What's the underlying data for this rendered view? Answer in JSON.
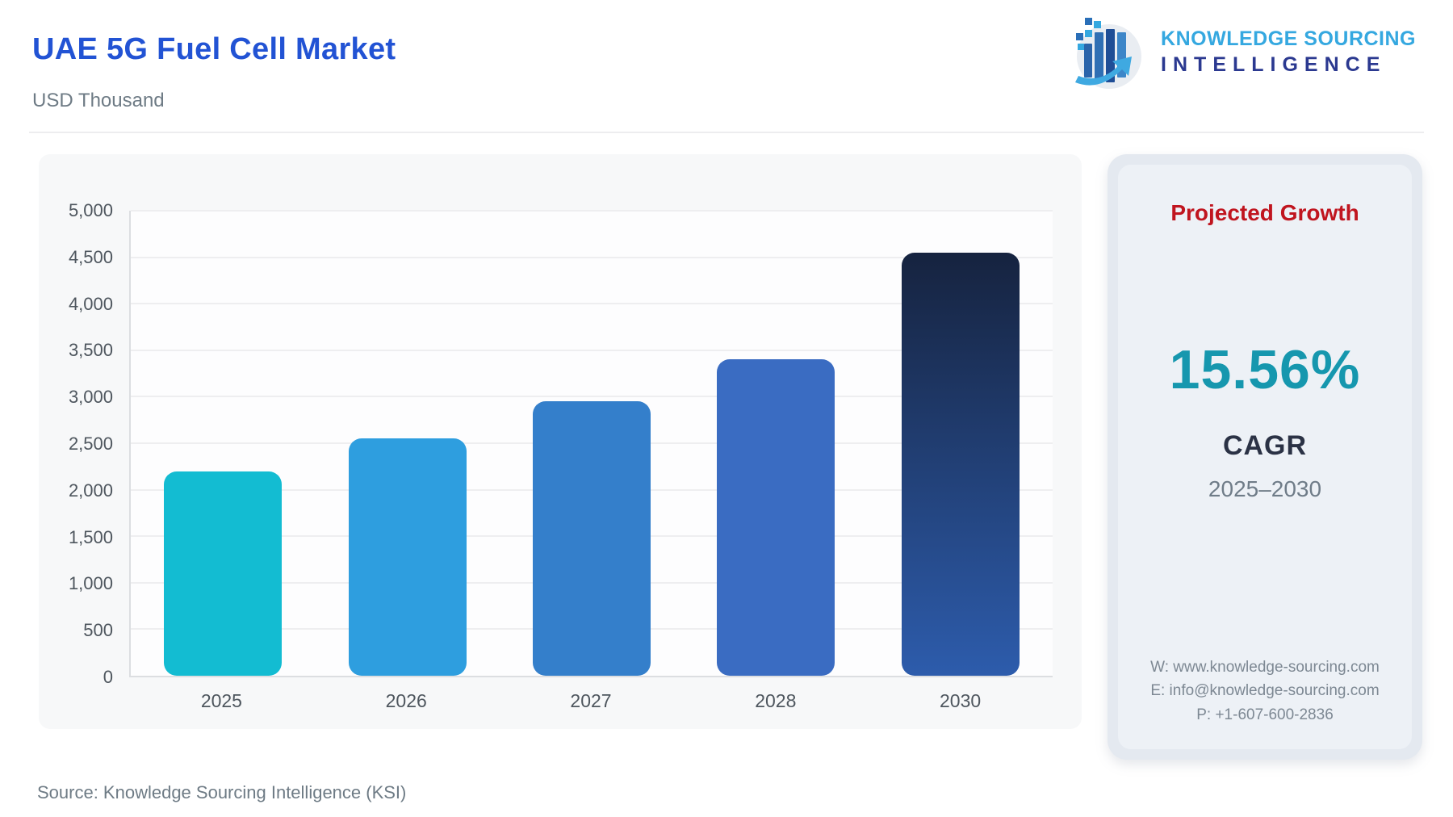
{
  "page": {
    "title": "UAE 5G Fuel Cell Market",
    "subtitle": "USD Thousand",
    "source": "Source: Knowledge Sourcing Intelligence (KSI)"
  },
  "logo": {
    "icon": "ksi-globe-bars-arrow-icon",
    "line1": "KNOWLEDGE SOURCING",
    "line2": "INTELLIGENCE",
    "line1_color": "#35A8E0",
    "line2_color": "#2B3990"
  },
  "chart_data": {
    "type": "bar",
    "title": "UAE 5G Fuel Cell Market",
    "unit_label": "USD Thousand",
    "categories": [
      "2025",
      "2026",
      "2027",
      "2028",
      "2030"
    ],
    "values": [
      2200,
      2550,
      2950,
      3400,
      4550
    ],
    "bar_colors": [
      "#13BCD2",
      "#2E9EDF",
      "#347FCB",
      "#3A6CC2",
      {
        "gradient": [
          "#16233F",
          "#2D5CAC"
        ]
      }
    ],
    "xlabel": "",
    "ylabel": "",
    "ylim": [
      0,
      5000
    ],
    "ytick_step": 500,
    "ytick_labels": [
      "0",
      "500",
      "1,000",
      "1,500",
      "2,000",
      "2,500",
      "3,000",
      "3,500",
      "4,000",
      "4,500",
      "5,000"
    ],
    "grid": true,
    "legend": "none"
  },
  "growth_panel": {
    "heading": "Projected Growth",
    "heading_color": "#C0151F",
    "cagr_value": "15.56%",
    "cagr_value_color": "#1697AE",
    "cagr_label": "CAGR",
    "period": "2025–2030",
    "contact": {
      "website": "W: www.knowledge-sourcing.com",
      "email": "E: info@knowledge-sourcing.com",
      "phone": "P: +1-607-600-2836"
    }
  }
}
